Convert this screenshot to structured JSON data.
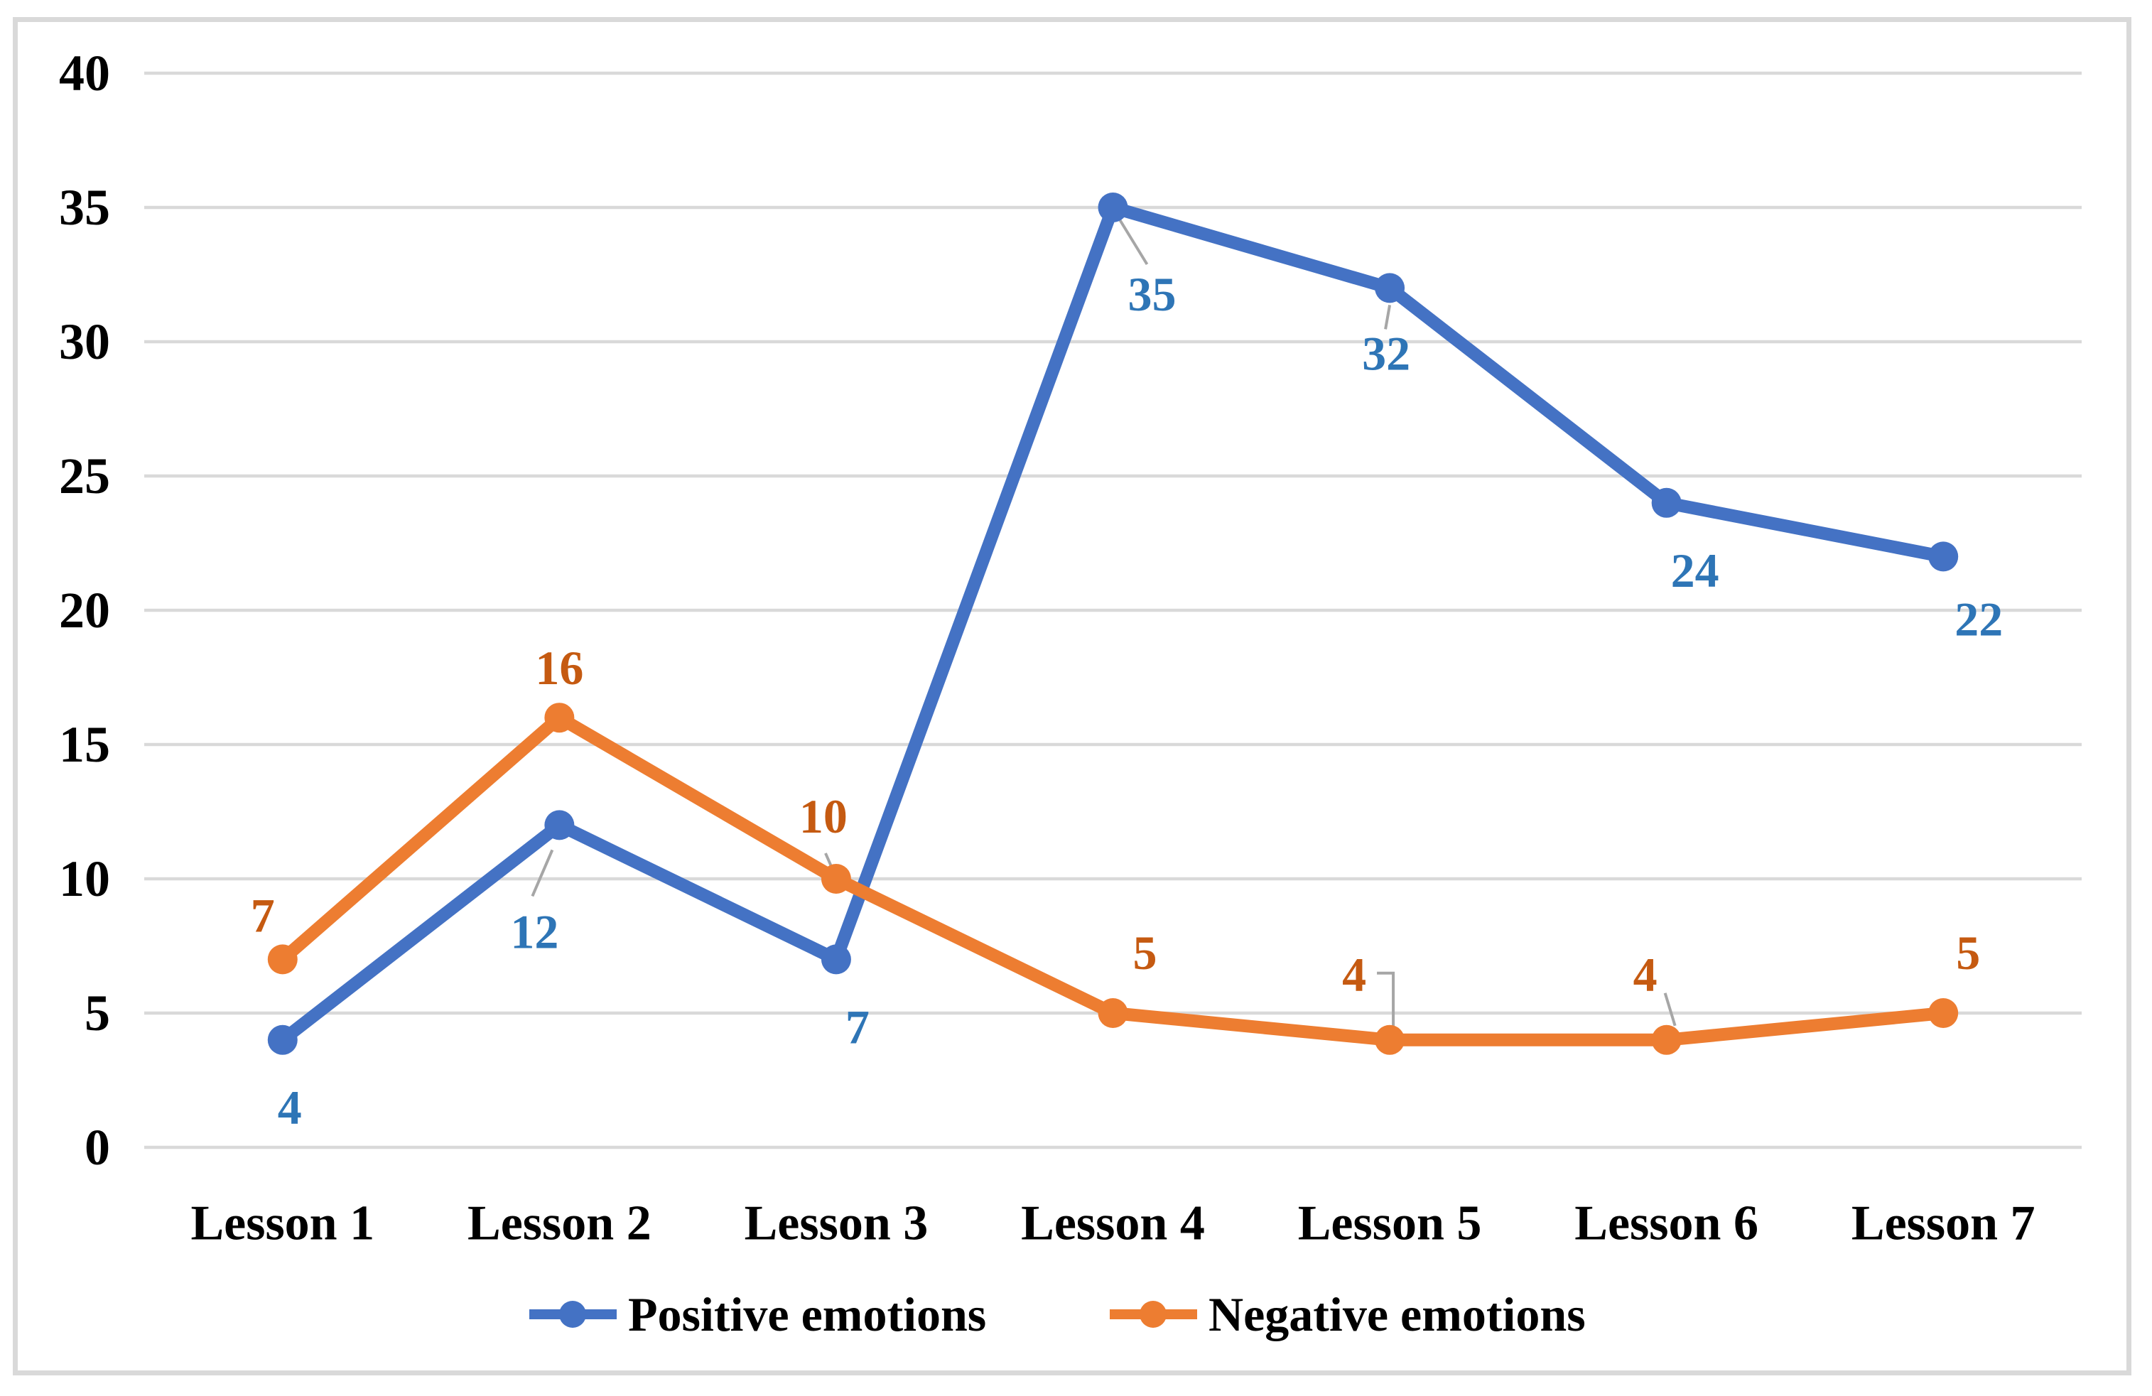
{
  "figure": {
    "background_color": "#ffffff",
    "border_color": "#d9d9d9",
    "text_color": "#000000"
  },
  "chart_data": {
    "type": "line",
    "title": "",
    "xlabel": "",
    "ylabel": "",
    "categories": [
      "Lesson 1",
      "Lesson 2",
      "Lesson 3",
      "Lesson 4",
      "Lesson 5",
      "Lesson 6",
      "Lesson 7"
    ],
    "series": [
      {
        "name": "Positive emotions",
        "color": "#4472C4",
        "label_color": "#2E75B6",
        "values": [
          4,
          12,
          7,
          35,
          32,
          24,
          22
        ]
      },
      {
        "name": "Negative emotions",
        "color": "#ED7D31",
        "label_color": "#C55A11",
        "values": [
          7,
          16,
          10,
          5,
          4,
          4,
          5
        ]
      }
    ],
    "y_ticks": [
      0,
      5,
      10,
      15,
      20,
      25,
      30,
      35,
      40
    ],
    "ylim": [
      0,
      40
    ],
    "grid": "horizontal",
    "gridline_color": "#d9d9d9",
    "leader_line_color": "#a6a6a6",
    "data_labels": true,
    "legend_position": "bottom",
    "marker": "circle"
  }
}
